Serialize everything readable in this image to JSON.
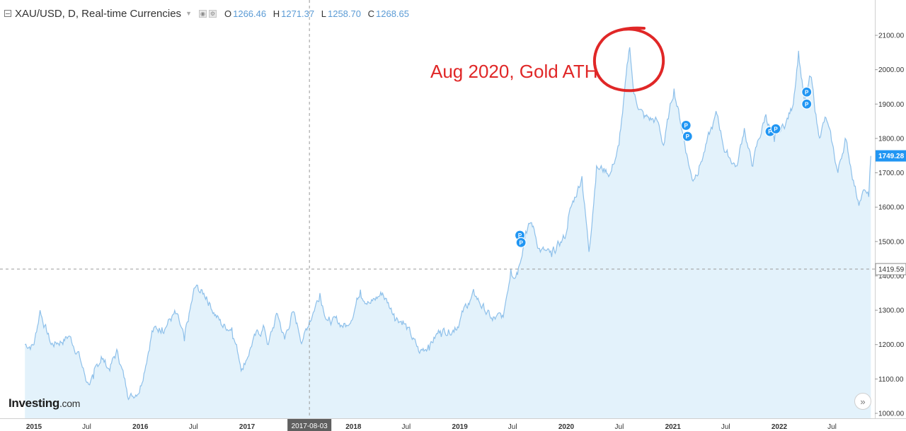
{
  "header": {
    "symbol": "XAU/USD, D, Real-time Currencies",
    "open_label": "O",
    "open": "1266.46",
    "high_label": "H",
    "high": "1271.37",
    "low_label": "L",
    "low": "1258.70",
    "close_label": "C",
    "close": "1268.65"
  },
  "annotation": "Aug 2020, Gold ATH",
  "logo": {
    "name": "Investing",
    "suffix": ".com"
  },
  "chart_data": {
    "type": "area",
    "title": "XAU/USD, D, Real-time Currencies",
    "xlabel": "",
    "ylabel": "",
    "ylim": [
      985,
      2140
    ],
    "x_ticks": [
      "2015",
      "Jul",
      "2016",
      "Jul",
      "2017",
      "2017-08-03",
      "2018",
      "Jul",
      "2019",
      "Jul",
      "2020",
      "Jul",
      "2021",
      "Jul",
      "2022",
      "Jul"
    ],
    "y_ticks": [
      "2100.00",
      "2000.00",
      "1900.00",
      "1800.00",
      "1700.00",
      "1600.00",
      "1500.00",
      "1400.00",
      "1300.00",
      "1200.00",
      "1100.00",
      "1000.00"
    ],
    "last_price": "1749.28",
    "crosshair_price": "1419.59",
    "crosshair_date": "2017-08-03",
    "series": [
      {
        "x": [
          "2014-12-01",
          "2015-01-01",
          "2015-01-22",
          "2015-03-01",
          "2015-04-01",
          "2015-05-01",
          "2015-06-01",
          "2015-07-01",
          "2015-07-24",
          "2015-08-20",
          "2015-09-15",
          "2015-10-15",
          "2015-11-15",
          "2015-12-03",
          "2016-01-01",
          "2016-02-10",
          "2016-03-15",
          "2016-05-01",
          "2016-05-31",
          "2016-07-06",
          "2016-08-15",
          "2016-10-07",
          "2016-11-10",
          "2016-12-15",
          "2017-01-20",
          "2017-03-01",
          "2017-03-15",
          "2017-04-15",
          "2017-05-10",
          "2017-06-06",
          "2017-07-10",
          "2017-08-03",
          "2017-09-08",
          "2017-10-06",
          "2017-12-12",
          "2018-01-25",
          "2018-03-01",
          "2018-04-11",
          "2018-05-20",
          "2018-06-20",
          "2018-08-16",
          "2018-09-15",
          "2018-10-26",
          "2018-12-15",
          "2019-01-30",
          "2019-02-20",
          "2019-04-23",
          "2019-05-30",
          "2019-06-25",
          "2019-07-15",
          "2019-08-15",
          "2019-09-04",
          "2019-10-01",
          "2019-11-12",
          "2019-12-31",
          "2020-01-08",
          "2020-02-24",
          "2020-03-19",
          "2020-04-14",
          "2020-06-01",
          "2020-06-30",
          "2020-08-06",
          "2020-08-20",
          "2020-09-24",
          "2020-11-09",
          "2020-11-30",
          "2021-01-05",
          "2021-03-08",
          "2021-04-01",
          "2021-06-01",
          "2021-06-30",
          "2021-08-09",
          "2021-09-03",
          "2021-09-29",
          "2021-11-16",
          "2021-12-15",
          "2022-01-25",
          "2022-02-15",
          "2022-03-08",
          "2022-03-29",
          "2022-04-18",
          "2022-05-16",
          "2022-06-10",
          "2022-07-21",
          "2022-08-15",
          "2022-09-28",
          "2022-10-21",
          "2022-11-04",
          "2022-11-11"
        ],
        "values": [
          1200,
          1200,
          1300,
          1200,
          1210,
          1225,
          1180,
          1090,
          1100,
          1165,
          1130,
          1180,
          1070,
          1050,
          1080,
          1240,
          1250,
          1290,
          1210,
          1365,
          1340,
          1255,
          1250,
          1130,
          1210,
          1250,
          1200,
          1290,
          1215,
          1295,
          1210,
          1270,
          1350,
          1270,
          1255,
          1360,
          1320,
          1350,
          1290,
          1270,
          1175,
          1200,
          1240,
          1250,
          1320,
          1345,
          1270,
          1280,
          1420,
          1410,
          1530,
          1555,
          1480,
          1455,
          1520,
          1570,
          1690,
          1470,
          1720,
          1700,
          1780,
          2065,
          1930,
          1860,
          1850,
          1780,
          1945,
          1680,
          1720,
          1870,
          1760,
          1720,
          1830,
          1720,
          1870,
          1790,
          1850,
          1890,
          2055,
          1900,
          1980,
          1810,
          1860,
          1700,
          1800,
          1620,
          1650,
          1630,
          1749
        ]
      }
    ],
    "markers": [
      {
        "date": "2019-07-26",
        "price": 1518,
        "label": "P"
      },
      {
        "date": "2019-07-30",
        "price": 1497,
        "label": "P"
      },
      {
        "date": "2021-02-15",
        "price": 1838,
        "label": "P"
      },
      {
        "date": "2021-02-20",
        "price": 1806,
        "label": "P"
      },
      {
        "date": "2021-12-10",
        "price": 1820,
        "label": "P"
      },
      {
        "date": "2021-12-20",
        "price": 1828,
        "label": "P"
      },
      {
        "date": "2022-04-05",
        "price": 1935,
        "label": "P"
      },
      {
        "date": "2022-04-05",
        "price": 1900,
        "label": "P"
      }
    ],
    "colors": {
      "line": "#8ec0ea",
      "area": "#e3f2fb",
      "marker": "#2196f3",
      "annotation": "#e02727",
      "crosshair_tag": "#5f5f5f"
    },
    "grid": false,
    "legend": "none"
  }
}
